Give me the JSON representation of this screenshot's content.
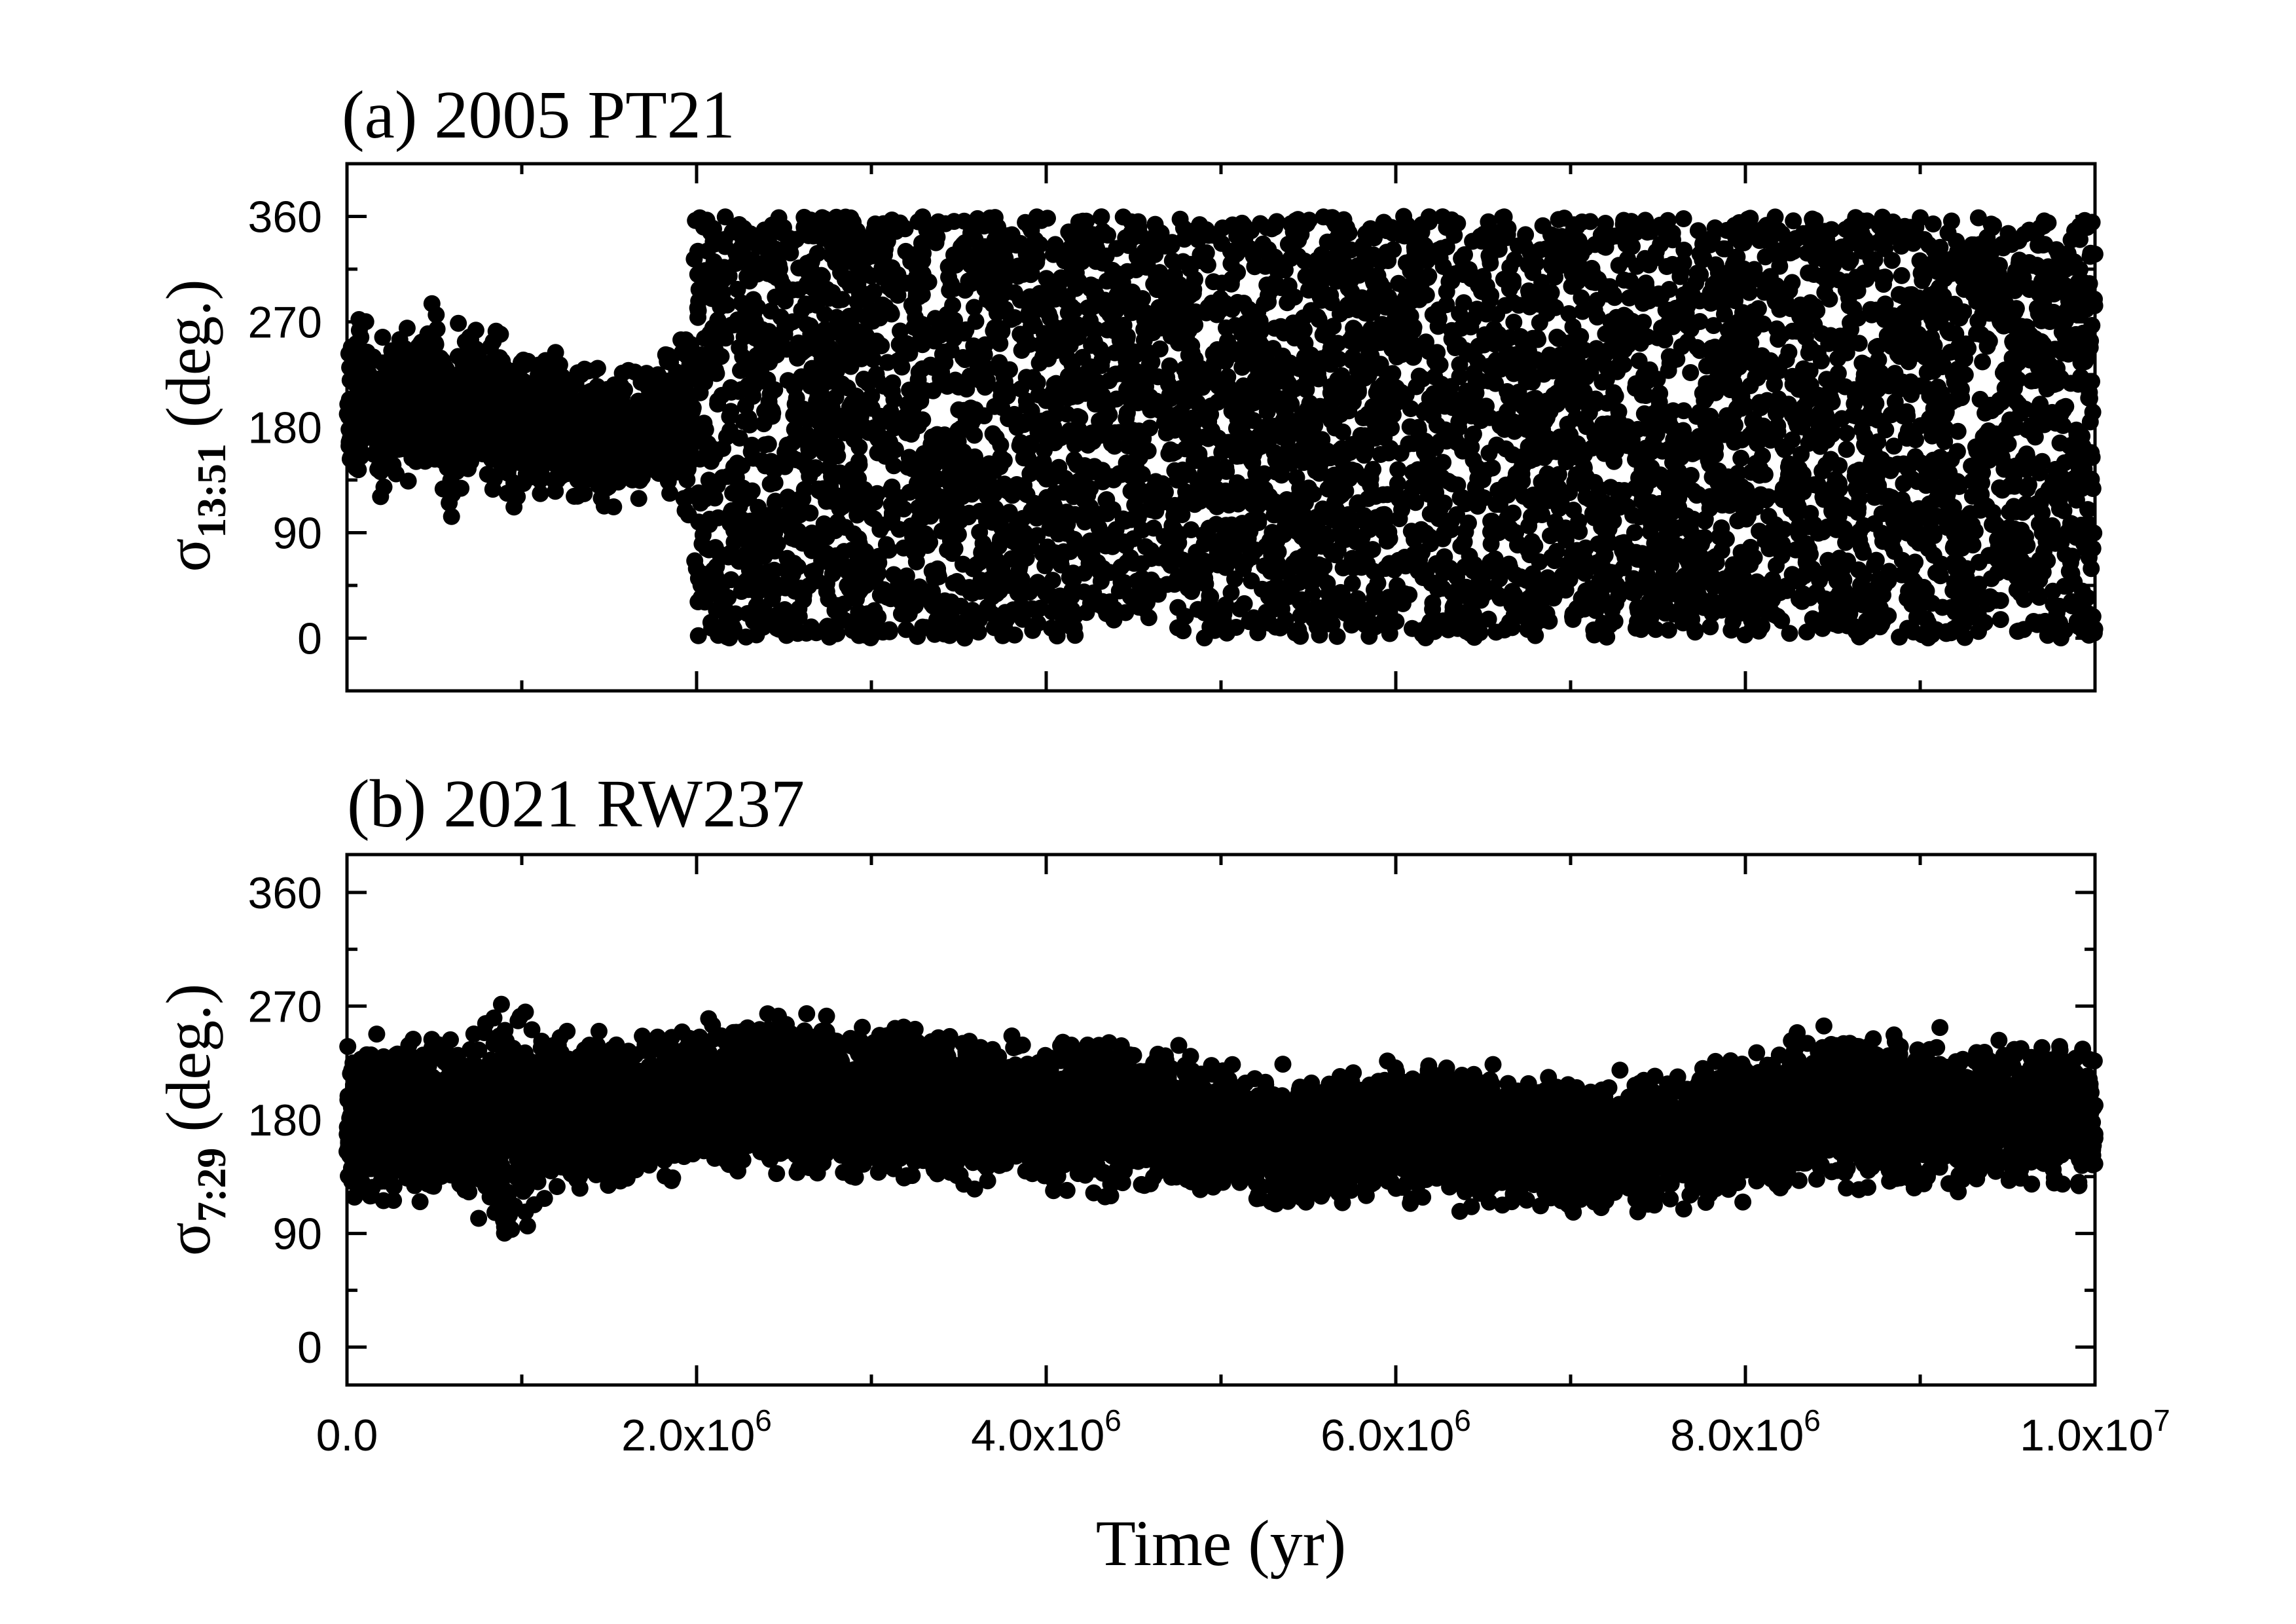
{
  "chart_data": [
    {
      "type": "scatter",
      "title": "(a) 2005 PT21",
      "ylabel_symbol": "σ",
      "ylabel_subscript": "13:51",
      "ylabel_suffix": " (deg.)",
      "xlim": [
        0,
        10000000
      ],
      "ylim": [
        -45,
        405
      ],
      "yticks": [
        0,
        90,
        180,
        270,
        360
      ],
      "ytick_labels": [
        "0",
        "90",
        "180",
        "270",
        "360"
      ],
      "marker": "filled-circle",
      "color": "#000000",
      "series": [
        {
          "values": [
            {
              "x": 0,
              "y": 195
            },
            {
              "x": 100000,
              "y": 215
            },
            {
              "x": 200000,
              "y": 185
            },
            {
              "x": 300000,
              "y": 205
            },
            {
              "x": 400000,
              "y": 190
            },
            {
              "x": 500000,
              "y": 210
            },
            {
              "x": 600000,
              "y": 180
            },
            {
              "x": 700000,
              "y": 200
            },
            {
              "x": 800000,
              "y": 195
            },
            {
              "x": 900000,
              "y": 185
            },
            {
              "x": 1000000,
              "y": 190
            },
            {
              "x": 1100000,
              "y": 175
            },
            {
              "x": 1200000,
              "y": 185
            },
            {
              "x": 1300000,
              "y": 170
            },
            {
              "x": 1400000,
              "y": 180
            },
            {
              "x": 1500000,
              "y": 165
            },
            {
              "x": 1600000,
              "y": 175
            },
            {
              "x": 1700000,
              "y": 170
            },
            {
              "x": 1800000,
              "y": 180
            },
            {
              "x": 1900000,
              "y": 175
            },
            {
              "x": 2000000,
              "y": 190
            },
            {
              "x": 3000000,
              "y": 180
            },
            {
              "x": 4000000,
              "y": 180
            },
            {
              "x": 5000000,
              "y": 180
            },
            {
              "x": 6000000,
              "y": 180
            },
            {
              "x": 7000000,
              "y": 180
            },
            {
              "x": 8000000,
              "y": 180
            },
            {
              "x": 9000000,
              "y": 180
            },
            {
              "x": 10000000,
              "y": 180
            }
          ],
          "spread_deg": [
            75,
            78,
            82,
            88,
            92,
            94,
            92,
            90,
            88,
            86,
            84,
            82,
            80,
            76,
            72,
            68,
            66,
            68,
            72,
            110,
            180,
            180,
            180,
            180,
            180,
            180,
            180,
            180,
            180
          ]
        }
      ]
    },
    {
      "type": "scatter",
      "title": "(b) 2021 RW237",
      "ylabel_symbol": "σ",
      "ylabel_subscript": "7:29",
      "ylabel_suffix": " (deg.)",
      "xlim": [
        0,
        10000000
      ],
      "ylim": [
        -30,
        390
      ],
      "yticks": [
        0,
        90,
        180,
        270,
        360
      ],
      "ytick_labels": [
        "0",
        "90",
        "180",
        "270",
        "360"
      ],
      "xticks": [
        0,
        2000000,
        4000000,
        6000000,
        8000000,
        10000000
      ],
      "xtick_labels": [
        {
          "base": "0.0",
          "exp": ""
        },
        {
          "base": "2.0x10",
          "exp": "6"
        },
        {
          "base": "4.0x10",
          "exp": "6"
        },
        {
          "base": "6.0x10",
          "exp": "6"
        },
        {
          "base": "8.0x10",
          "exp": "6"
        },
        {
          "base": "1.0x10",
          "exp": "7"
        }
      ],
      "xlabel": "Time (yr)",
      "marker": "filled-circle",
      "color": "#000000",
      "series": [
        {
          "values": [
            {
              "x": 0,
              "y": 175
            },
            {
              "x": 250000,
              "y": 178
            },
            {
              "x": 500000,
              "y": 180
            },
            {
              "x": 750000,
              "y": 180
            },
            {
              "x": 900000,
              "y": 175
            },
            {
              "x": 1000000,
              "y": 182
            },
            {
              "x": 1250000,
              "y": 185
            },
            {
              "x": 1500000,
              "y": 188
            },
            {
              "x": 1750000,
              "y": 192
            },
            {
              "x": 2000000,
              "y": 198
            },
            {
              "x": 2500000,
              "y": 200
            },
            {
              "x": 3000000,
              "y": 195
            },
            {
              "x": 3500000,
              "y": 188
            },
            {
              "x": 4000000,
              "y": 185
            },
            {
              "x": 4500000,
              "y": 182
            },
            {
              "x": 5000000,
              "y": 172
            },
            {
              "x": 5500000,
              "y": 165
            },
            {
              "x": 6000000,
              "y": 168
            },
            {
              "x": 6500000,
              "y": 170
            },
            {
              "x": 7000000,
              "y": 158
            },
            {
              "x": 7500000,
              "y": 162
            },
            {
              "x": 8000000,
              "y": 178
            },
            {
              "x": 8500000,
              "y": 190
            },
            {
              "x": 9000000,
              "y": 185
            },
            {
              "x": 9500000,
              "y": 183
            },
            {
              "x": 10000000,
              "y": 185
            }
          ],
          "spread_deg": [
            75,
            76,
            78,
            90,
            120,
            110,
            78,
            72,
            70,
            74,
            76,
            76,
            74,
            72,
            70,
            62,
            60,
            62,
            64,
            62,
            66,
            70,
            74,
            72,
            70,
            70
          ]
        }
      ]
    }
  ]
}
